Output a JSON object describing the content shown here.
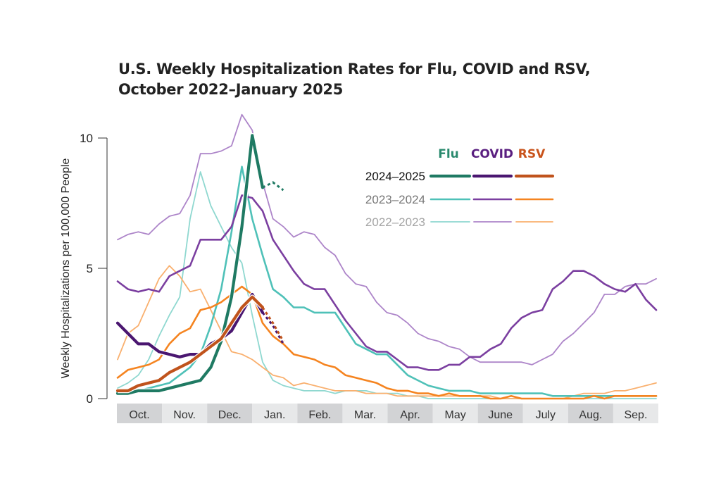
{
  "title_line1": "U.S. Weekly Hospitalization Rates for Flu, COVID and RSV,",
  "title_line2": "October 2022–January 2025",
  "chart_data": {
    "type": "line",
    "title": "U.S. Weekly Hospitalization Rates for Flu, COVID and RSV, October 2022–January 2025",
    "ylabel": "Weekly Hospitalizations per 100,000 People",
    "xlabel": "",
    "ylim": [
      0,
      10
    ],
    "yticks": [
      "0",
      "5",
      "10"
    ],
    "xticks": [
      "Oct.",
      "Nov.",
      "Dec.",
      "Jan.",
      "Feb.",
      "Mar.",
      "Apr.",
      "May",
      "June",
      "July",
      "Aug.",
      "Sep."
    ],
    "weeks": [
      "Oct 1",
      "Oct 8",
      "Oct 15",
      "Oct 22",
      "Oct 29",
      "Nov 5",
      "Nov 12",
      "Nov 19",
      "Nov 26",
      "Dec 3",
      "Dec 10",
      "Dec 17",
      "Dec 24",
      "Dec 31",
      "Jan 7",
      "Jan 14",
      "Jan 21",
      "Jan 28",
      "Feb 4",
      "Feb 11",
      "Feb 18",
      "Feb 25",
      "Mar 4",
      "Mar 11",
      "Mar 18",
      "Mar 25",
      "Apr 1",
      "Apr 8",
      "Apr 15",
      "Apr 22",
      "Apr 29",
      "May 6",
      "May 13",
      "May 20",
      "May 27",
      "Jun 3",
      "Jun 10",
      "Jun 17",
      "Jun 24",
      "Jul 1",
      "Jul 8",
      "Jul 15",
      "Jul 22",
      "Jul 29",
      "Aug 5",
      "Aug 12",
      "Aug 19",
      "Aug 26",
      "Sep 2",
      "Sep 9",
      "Sep 16",
      "Sep 23",
      "Sep 30"
    ],
    "grid": false,
    "legend": {
      "placement": "top-right",
      "columns": [
        "Flu",
        "COVID",
        "RSV"
      ],
      "rows": [
        "2024–2025",
        "2023–2024",
        "2022–2023"
      ]
    },
    "series": [
      {
        "disease": "Flu",
        "season": "2022–2023",
        "color": "#8fd8d0",
        "values": [
          0.4,
          0.6,
          0.9,
          1.5,
          2.4,
          3.2,
          3.9,
          6.9,
          8.7,
          7.4,
          6.6,
          5.8,
          5.2,
          3.2,
          1.4,
          0.7,
          0.5,
          0.4,
          0.3,
          0.3,
          0.3,
          0.2,
          0.3,
          0.3,
          0.3,
          0.2,
          0.2,
          0.2,
          0.1,
          0.1,
          0,
          0,
          0,
          0,
          0,
          0,
          0,
          0,
          0,
          0,
          0,
          0,
          0,
          0,
          0,
          0,
          0,
          0,
          0,
          0,
          0,
          0,
          0
        ]
      },
      {
        "disease": "COVID",
        "season": "2022–2023",
        "color": "#ad85c9",
        "values": [
          6.1,
          6.3,
          6.4,
          6.3,
          6.7,
          7.0,
          7.1,
          7.8,
          9.4,
          9.4,
          9.5,
          9.7,
          10.9,
          10.3,
          8.3,
          6.9,
          6.6,
          6.2,
          6.4,
          6.3,
          5.8,
          5.5,
          4.8,
          4.4,
          4.3,
          3.7,
          3.3,
          3.2,
          2.9,
          2.5,
          2.3,
          2.2,
          2.0,
          1.9,
          1.6,
          1.4,
          1.4,
          1.4,
          1.4,
          1.4,
          1.3,
          1.5,
          1.7,
          2.2,
          2.5,
          2.9,
          3.3,
          4.0,
          4.0,
          4.3,
          4.4,
          4.4,
          4.6
        ]
      },
      {
        "disease": "RSV",
        "season": "2022–2023",
        "color": "#f9b06f",
        "values": [
          1.5,
          2.5,
          2.8,
          3.7,
          4.6,
          5.1,
          4.7,
          4.1,
          4.2,
          3.4,
          2.6,
          1.8,
          1.7,
          1.5,
          1.2,
          0.9,
          0.8,
          0.5,
          0.6,
          0.5,
          0.4,
          0.3,
          0.3,
          0.3,
          0.2,
          0.2,
          0.2,
          0.1,
          0.1,
          0.1,
          0.1,
          0.1,
          0.1,
          0.1,
          0.1,
          0.1,
          0.1,
          0,
          0,
          0,
          0,
          0,
          0,
          0,
          0.1,
          0.2,
          0.2,
          0.2,
          0.3,
          0.3,
          0.4,
          0.5,
          0.6
        ]
      },
      {
        "disease": "Flu",
        "season": "2023–2024",
        "color": "#4fc1b8",
        "values": [
          0.2,
          0.3,
          0.3,
          0.4,
          0.5,
          0.6,
          0.9,
          1.2,
          1.7,
          2.8,
          4.2,
          6.4,
          8.9,
          6.9,
          5.5,
          4.2,
          3.9,
          3.5,
          3.5,
          3.3,
          3.3,
          3.3,
          2.7,
          2.1,
          1.9,
          1.7,
          1.7,
          1.3,
          0.9,
          0.7,
          0.5,
          0.4,
          0.3,
          0.3,
          0.3,
          0.2,
          0.2,
          0.2,
          0.2,
          0.2,
          0.2,
          0.2,
          0.1,
          0.1,
          0.1,
          0.1,
          0.1,
          0.1,
          0.1,
          0.1,
          0.1,
          0.1,
          0.1
        ]
      },
      {
        "disease": "COVID",
        "season": "2023–2024",
        "color": "#7b3fa0",
        "values": [
          4.5,
          4.2,
          4.1,
          4.2,
          4.1,
          4.7,
          4.9,
          5.1,
          6.1,
          6.1,
          6.1,
          6.6,
          7.8,
          7.7,
          7.2,
          6.1,
          5.5,
          4.9,
          4.4,
          4.2,
          4.2,
          3.6,
          3.0,
          2.5,
          2.0,
          1.8,
          1.8,
          1.5,
          1.2,
          1.2,
          1.1,
          1.1,
          1.3,
          1.3,
          1.6,
          1.6,
          1.9,
          2.1,
          2.7,
          3.1,
          3.3,
          3.4,
          4.2,
          4.5,
          4.9,
          4.9,
          4.7,
          4.4,
          4.2,
          4.1,
          4.4,
          3.8,
          3.4
        ]
      },
      {
        "disease": "RSV",
        "season": "2023–2024",
        "color": "#f58420",
        "values": [
          0.8,
          1.1,
          1.2,
          1.3,
          1.5,
          2.1,
          2.5,
          2.7,
          3.4,
          3.5,
          3.7,
          4.0,
          4.3,
          4.0,
          2.9,
          2.4,
          2.1,
          1.7,
          1.6,
          1.5,
          1.3,
          1.2,
          0.9,
          0.8,
          0.7,
          0.6,
          0.4,
          0.3,
          0.3,
          0.2,
          0.2,
          0.1,
          0.2,
          0.1,
          0.1,
          0.1,
          0,
          0,
          0.1,
          0,
          0,
          0,
          0,
          0,
          0,
          0,
          0.1,
          0,
          0.1,
          0.1,
          0.1,
          0.1,
          0.1
        ]
      },
      {
        "disease": "Flu",
        "season": "2024–2025",
        "color": "#1f7a63",
        "values": [
          0.2,
          0.2,
          0.3,
          0.3,
          0.3,
          0.4,
          0.5,
          0.6,
          0.7,
          1.2,
          2.2,
          3.9,
          6.6,
          10.1,
          8.1
        ],
        "preliminary": [
          null,
          null,
          null,
          null,
          null,
          null,
          null,
          null,
          null,
          null,
          null,
          null,
          null,
          null,
          8.1,
          8.3,
          8.0
        ]
      },
      {
        "disease": "COVID",
        "season": "2024–2025",
        "color": "#4a1670",
        "values": [
          2.9,
          2.5,
          2.1,
          2.1,
          1.8,
          1.7,
          1.6,
          1.7,
          1.7,
          2.1,
          2.3,
          2.6,
          3.3,
          4.0,
          3.3
        ],
        "preliminary": [
          null,
          null,
          null,
          null,
          null,
          null,
          null,
          null,
          null,
          null,
          null,
          null,
          null,
          null,
          3.3,
          2.8,
          2.1
        ]
      },
      {
        "disease": "RSV",
        "season": "2024–2025",
        "color": "#c0531c",
        "values": [
          0.3,
          0.3,
          0.5,
          0.6,
          0.7,
          1.0,
          1.2,
          1.4,
          1.7,
          2.0,
          2.3,
          2.9,
          3.5,
          3.9,
          3.5
        ],
        "preliminary": [
          null,
          null,
          null,
          null,
          null,
          null,
          null,
          null,
          null,
          null,
          null,
          null,
          null,
          null,
          3.5,
          2.9,
          2.2
        ]
      }
    ],
    "header_colors": {
      "Flu": "#2a8a6e",
      "COVID": "#5a1f80",
      "RSV": "#c9541c"
    },
    "row_label_colors": {
      "2024–2025": "#111111",
      "2023–2024": "#777777",
      "2022–2023": "#a5a5a5"
    }
  }
}
